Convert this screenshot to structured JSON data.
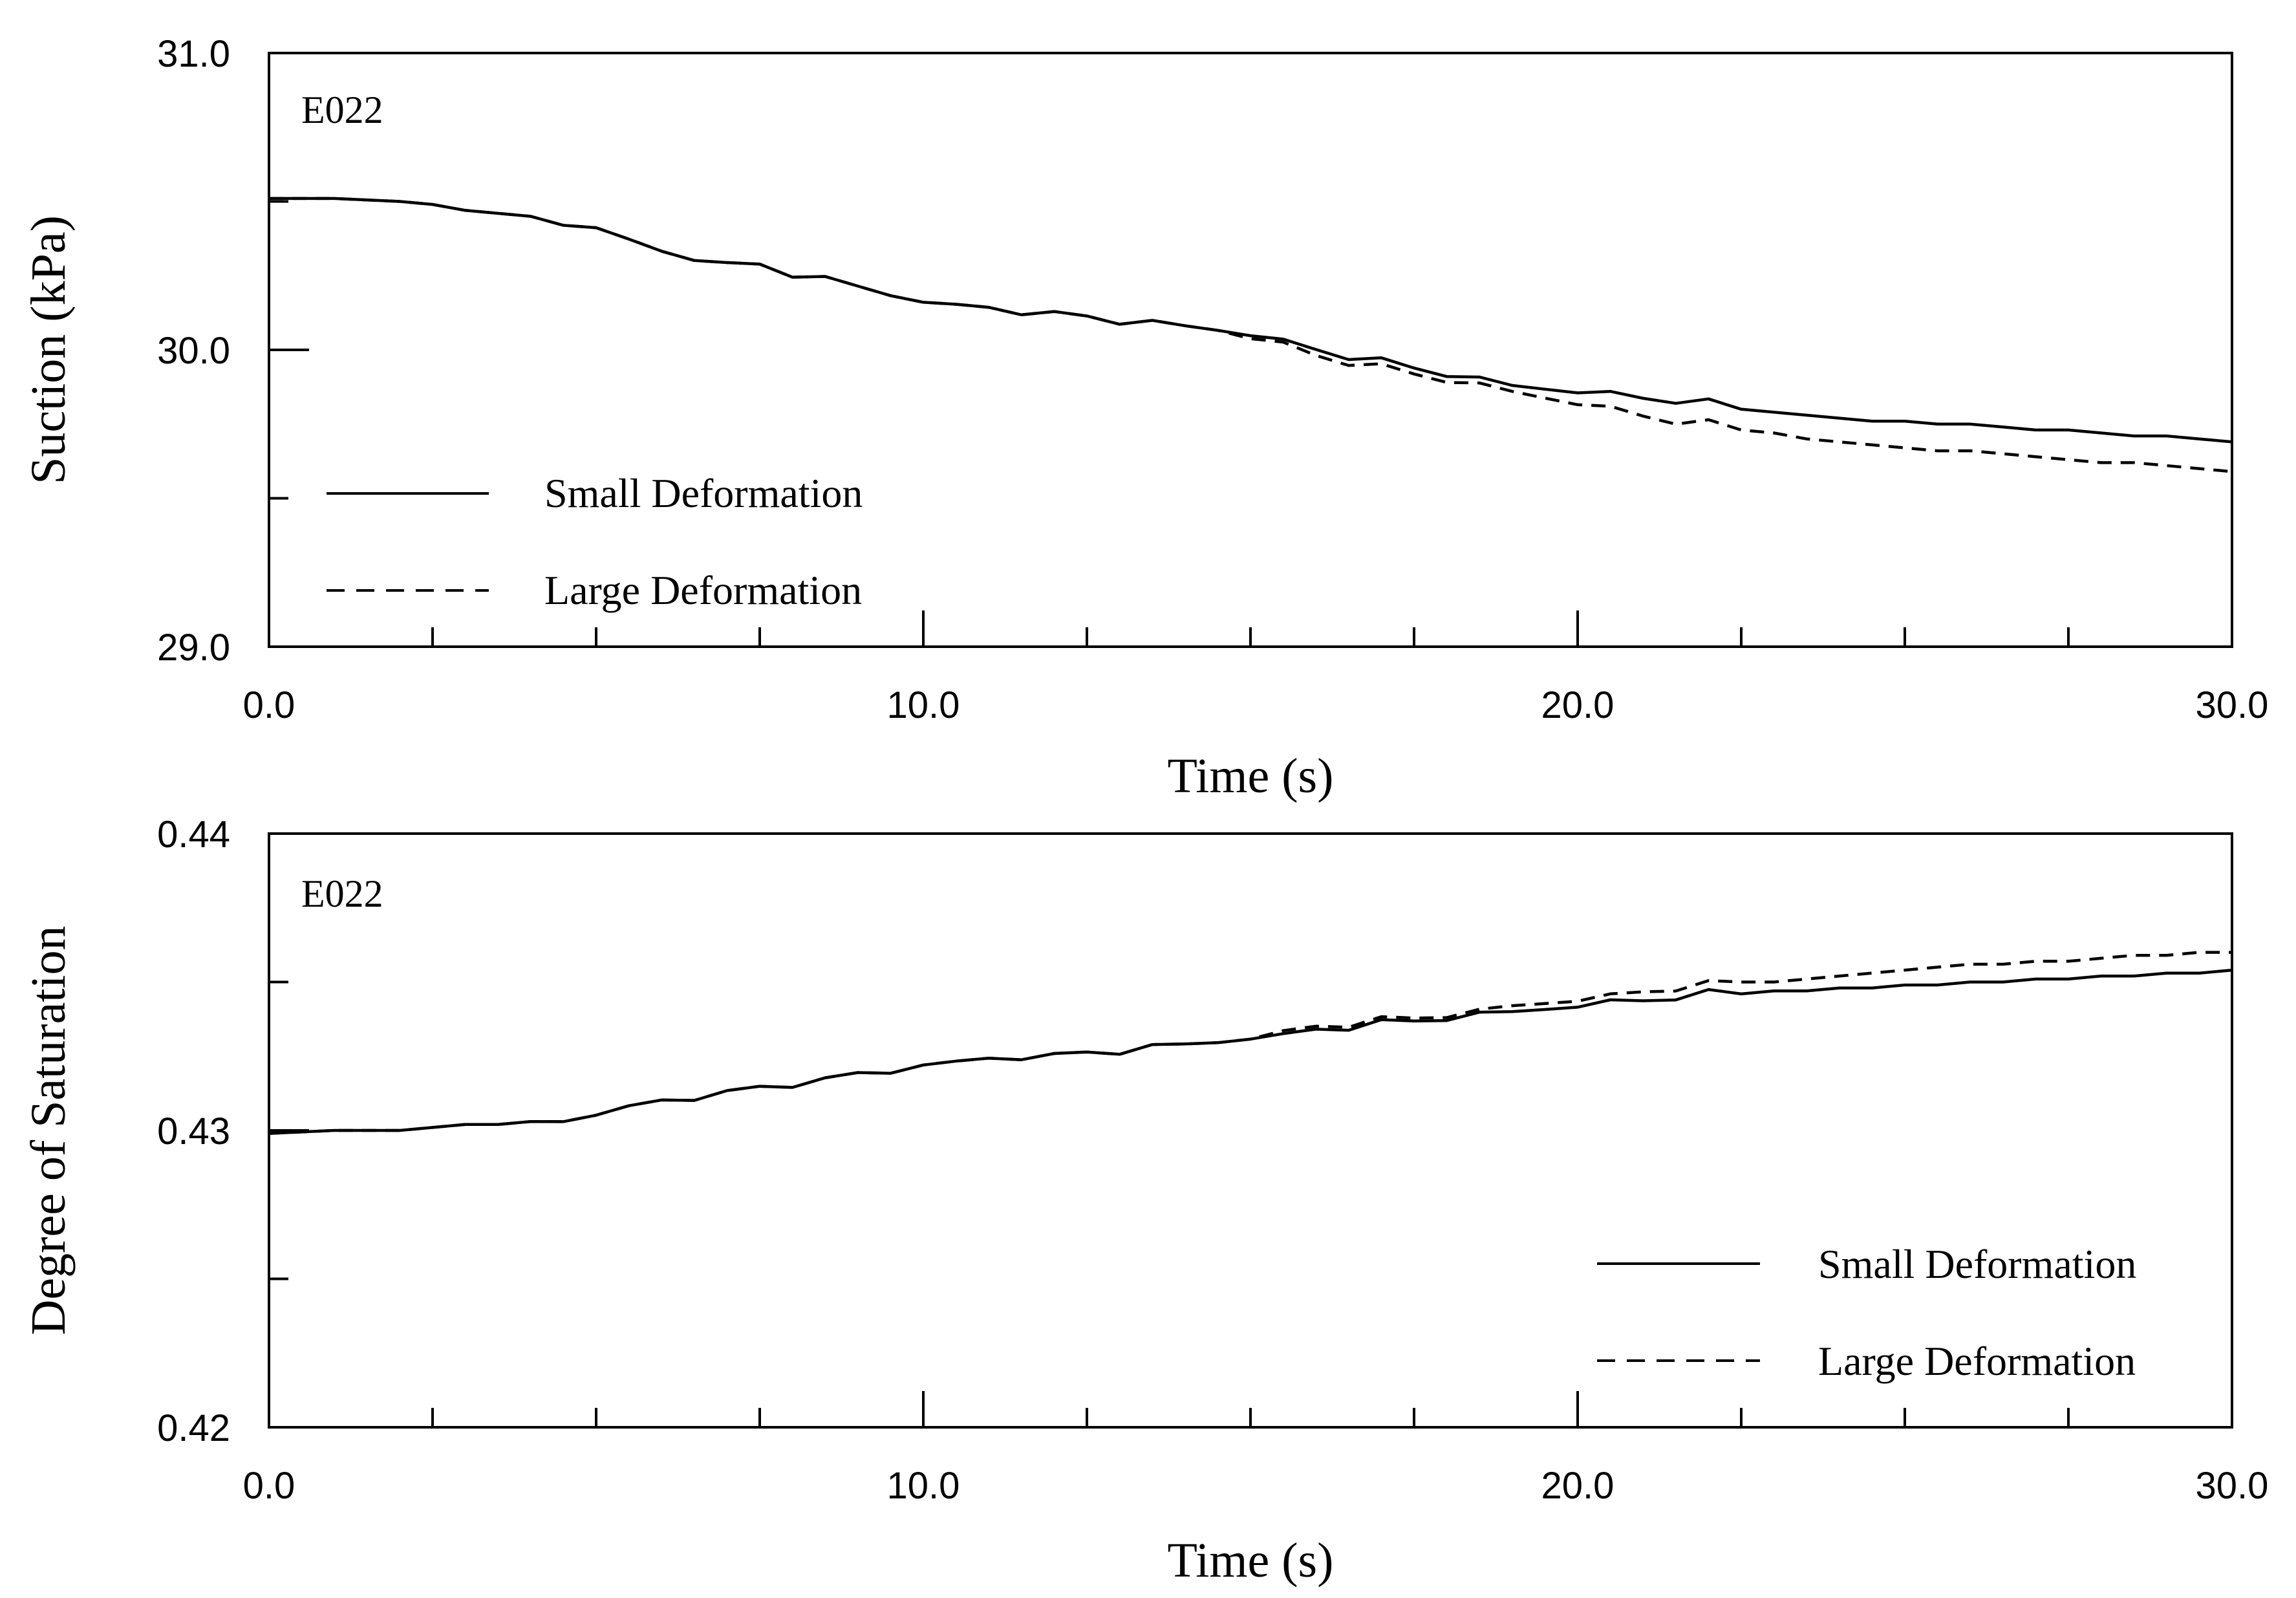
{
  "chart_data": [
    {
      "type": "line",
      "annotation": "E022",
      "xlabel": "Time (s)",
      "ylabel": "Suction (kPa)",
      "xlim": [
        0,
        30
      ],
      "ylim": [
        29,
        31
      ],
      "xticks": [
        0,
        10,
        20,
        30
      ],
      "xtick_labels": [
        "0.0",
        "10.0",
        "20.0",
        "30.0"
      ],
      "xminor": [
        2.5,
        5,
        7.5,
        12.5,
        15,
        17.5,
        22.5,
        25,
        27.5
      ],
      "yticks": [
        29,
        30,
        31
      ],
      "ytick_labels": [
        "29.0",
        "30.0",
        "31.0"
      ],
      "yminor": [
        29.5,
        30.5
      ],
      "grid": false,
      "legend_position": "bottom-left",
      "series": [
        {
          "name": "Small Deformation",
          "style": "solid",
          "color": "#000000",
          "x": [
            0,
            1,
            2,
            2.5,
            3,
            3.5,
            4,
            4.5,
            5,
            5.5,
            6,
            6.5,
            7,
            7.5,
            8,
            8.5,
            9,
            9.5,
            10,
            10.5,
            11,
            11.5,
            12,
            12.5,
            13,
            13.5,
            14,
            14.5,
            15,
            15.5,
            16,
            16.5,
            17,
            17.5,
            18,
            18.5,
            19,
            19.5,
            20,
            20.5,
            21,
            21.5,
            22,
            22.5,
            23,
            23.5,
            24,
            24.5,
            25,
            25.5,
            26,
            26.5,
            27,
            27.5,
            28,
            28.5,
            29,
            29.5,
            30
          ],
          "values": [
            30.51,
            30.51,
            30.5,
            30.49,
            30.47,
            30.46,
            30.45,
            30.43,
            30.41,
            30.37,
            30.33,
            30.31,
            30.29,
            30.28,
            30.26,
            30.24,
            30.21,
            30.19,
            30.16,
            30.15,
            30.14,
            30.13,
            30.12,
            30.11,
            30.1,
            30.09,
            30.08,
            30.07,
            30.05,
            30.03,
            30.0,
            29.98,
            29.96,
            29.94,
            29.92,
            29.9,
            29.88,
            29.87,
            29.86,
            29.85,
            29.84,
            29.83,
            29.82,
            29.8,
            29.79,
            29.78,
            29.77,
            29.76,
            29.76,
            29.75,
            29.75,
            29.74,
            29.73,
            29.73,
            29.72,
            29.71,
            29.71,
            29.7,
            29.69
          ]
        },
        {
          "name": "Large Deformation",
          "style": "dashed",
          "color": "#000000",
          "x": [
            0,
            1,
            2,
            2.5,
            3,
            3.5,
            4,
            4.5,
            5,
            5.5,
            6,
            6.5,
            7,
            7.5,
            8,
            8.5,
            9,
            9.5,
            10,
            10.5,
            11,
            11.5,
            12,
            12.5,
            13,
            13.5,
            14,
            14.5,
            15,
            15.5,
            16,
            16.5,
            17,
            17.5,
            18,
            18.5,
            19,
            19.5,
            20,
            20.5,
            21,
            21.5,
            22,
            22.5,
            23,
            23.5,
            24,
            24.5,
            25,
            25.5,
            26,
            26.5,
            27,
            27.5,
            28,
            28.5,
            29,
            29.5,
            30
          ],
          "values": [
            30.51,
            30.51,
            30.5,
            30.49,
            30.47,
            30.46,
            30.45,
            30.43,
            30.41,
            30.37,
            30.33,
            30.31,
            30.29,
            30.28,
            30.26,
            30.24,
            30.21,
            30.19,
            30.16,
            30.15,
            30.14,
            30.13,
            30.12,
            30.11,
            30.1,
            30.09,
            30.08,
            30.07,
            30.04,
            30.02,
            29.98,
            29.96,
            29.94,
            29.92,
            29.9,
            29.88,
            29.86,
            29.84,
            29.82,
            29.8,
            29.78,
            29.76,
            29.75,
            29.73,
            29.72,
            29.7,
            29.69,
            29.68,
            29.67,
            29.66,
            29.66,
            29.65,
            29.64,
            29.63,
            29.62,
            29.62,
            29.61,
            29.6,
            29.59
          ]
        }
      ]
    },
    {
      "type": "line",
      "annotation": "E022",
      "xlabel": "Time (s)",
      "ylabel": "Degree of Saturation",
      "xlim": [
        0,
        30
      ],
      "ylim": [
        0.42,
        0.44
      ],
      "xticks": [
        0,
        10,
        20,
        30
      ],
      "xtick_labels": [
        "0.0",
        "10.0",
        "20.0",
        "30.0"
      ],
      "xminor": [
        2.5,
        5,
        7.5,
        12.5,
        15,
        17.5,
        22.5,
        25,
        27.5
      ],
      "yticks": [
        0.42,
        0.43,
        0.44
      ],
      "ytick_labels": [
        "0.42",
        "0.43",
        "0.44"
      ],
      "yminor": [
        0.425,
        0.435
      ],
      "grid": false,
      "legend_position": "bottom-right",
      "series": [
        {
          "name": "Small Deformation",
          "style": "solid",
          "color": "#000000",
          "x": [
            0,
            1,
            2,
            2.5,
            3,
            3.5,
            4,
            4.5,
            5,
            5.5,
            6,
            6.5,
            7,
            7.5,
            8,
            8.5,
            9,
            9.5,
            10,
            10.5,
            11,
            11.5,
            12,
            12.5,
            13,
            13.5,
            14,
            14.5,
            15,
            15.5,
            16,
            16.5,
            17,
            17.5,
            18,
            18.5,
            19,
            19.5,
            20,
            20.5,
            21,
            21.5,
            22,
            22.5,
            23,
            23.5,
            24,
            24.5,
            25,
            25.5,
            26,
            26.5,
            27,
            27.5,
            28,
            28.5,
            29,
            29.5,
            30
          ],
          "values": [
            0.4299,
            0.43,
            0.43,
            0.4301,
            0.4302,
            0.4302,
            0.4303,
            0.4304,
            0.4305,
            0.4308,
            0.431,
            0.4311,
            0.4313,
            0.4314,
            0.4316,
            0.4317,
            0.4319,
            0.432,
            0.4322,
            0.4323,
            0.4324,
            0.4325,
            0.4325,
            0.4326,
            0.4327,
            0.4328,
            0.4329,
            0.433,
            0.4331,
            0.4332,
            0.4334,
            0.4335,
            0.4336,
            0.4337,
            0.4338,
            0.4339,
            0.434,
            0.4341,
            0.4342,
            0.4343,
            0.4344,
            0.4345,
            0.4346,
            0.4346,
            0.4347,
            0.4347,
            0.4348,
            0.4348,
            0.4349,
            0.4349,
            0.435,
            0.435,
            0.4351,
            0.4351,
            0.4352,
            0.4352,
            0.4353,
            0.4353,
            0.4354
          ]
        },
        {
          "name": "Large Deformation",
          "style": "dashed",
          "color": "#000000",
          "x": [
            0,
            1,
            2,
            2.5,
            3,
            3.5,
            4,
            4.5,
            5,
            5.5,
            6,
            6.5,
            7,
            7.5,
            8,
            8.5,
            9,
            9.5,
            10,
            10.5,
            11,
            11.5,
            12,
            12.5,
            13,
            13.5,
            14,
            14.5,
            15,
            15.5,
            16,
            16.5,
            17,
            17.5,
            18,
            18.5,
            19,
            19.5,
            20,
            20.5,
            21,
            21.5,
            22,
            22.5,
            23,
            23.5,
            24,
            24.5,
            25,
            25.5,
            26,
            26.5,
            27,
            27.5,
            28,
            28.5,
            29,
            29.5,
            30
          ],
          "values": [
            0.4299,
            0.43,
            0.43,
            0.4301,
            0.4302,
            0.4302,
            0.4303,
            0.4304,
            0.4305,
            0.4308,
            0.431,
            0.4311,
            0.4313,
            0.4314,
            0.4316,
            0.4317,
            0.4319,
            0.432,
            0.4322,
            0.4323,
            0.4324,
            0.4325,
            0.4325,
            0.4326,
            0.4327,
            0.4328,
            0.4329,
            0.433,
            0.4331,
            0.4333,
            0.4335,
            0.4336,
            0.4337,
            0.4338,
            0.4339,
            0.434,
            0.4342,
            0.4343,
            0.4344,
            0.4345,
            0.4347,
            0.4348,
            0.4349,
            0.435,
            0.435,
            0.4351,
            0.4352,
            0.4353,
            0.4354,
            0.4355,
            0.4356,
            0.4356,
            0.4357,
            0.4357,
            0.4358,
            0.4359,
            0.4359,
            0.436,
            0.436
          ]
        }
      ]
    }
  ]
}
